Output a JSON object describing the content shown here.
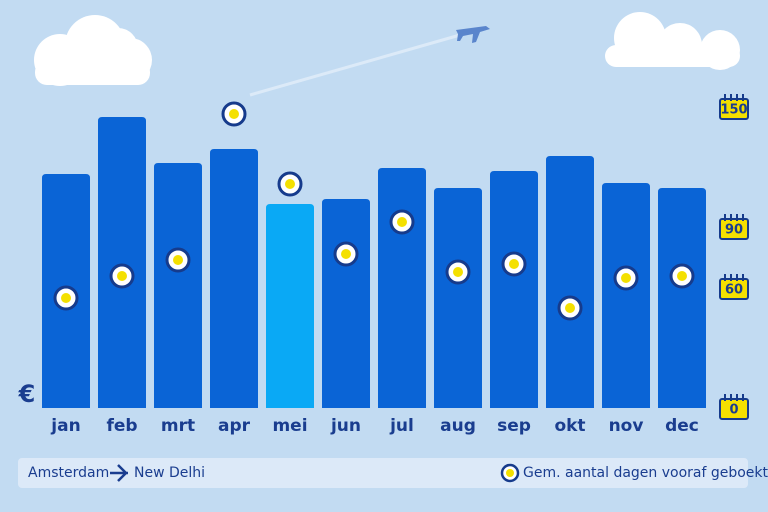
{
  "chart_data": {
    "type": "bar",
    "y_label": "€",
    "categories": [
      "jan",
      "feb",
      "mrt",
      "apr",
      "mei",
      "jun",
      "jul",
      "aug",
      "sep",
      "okt",
      "nov",
      "dec"
    ],
    "series": [
      {
        "values": [
          234,
          291,
          245,
          259,
          204,
          209,
          240,
          220,
          237,
          252,
          225,
          220
        ],
        "colors": [
          "#0a64d6",
          "#0a64d6",
          "#0a64d6",
          "#0a64d6",
          "#0aa9f5",
          "#0a64d6",
          "#0a64d6",
          "#0a64d6",
          "#0a64d6",
          "#0a64d6",
          "#0a64d6",
          "#0a64d6"
        ]
      },
      {
        "name": "Gem. aantal dagen vooraf geboekt",
        "axis": "y2",
        "color": "#f4e000",
        "values": [
          55,
          66,
          74,
          147,
          112,
          77,
          93,
          68,
          72,
          50,
          65,
          66
        ]
      }
    ],
    "ylim": [
      0,
      300
    ],
    "y2lim": [
      0,
      150
    ],
    "y2ticks": [
      0,
      60,
      90,
      150
    ],
    "origin": "Amsterdam",
    "destination": "New Delhi"
  }
}
